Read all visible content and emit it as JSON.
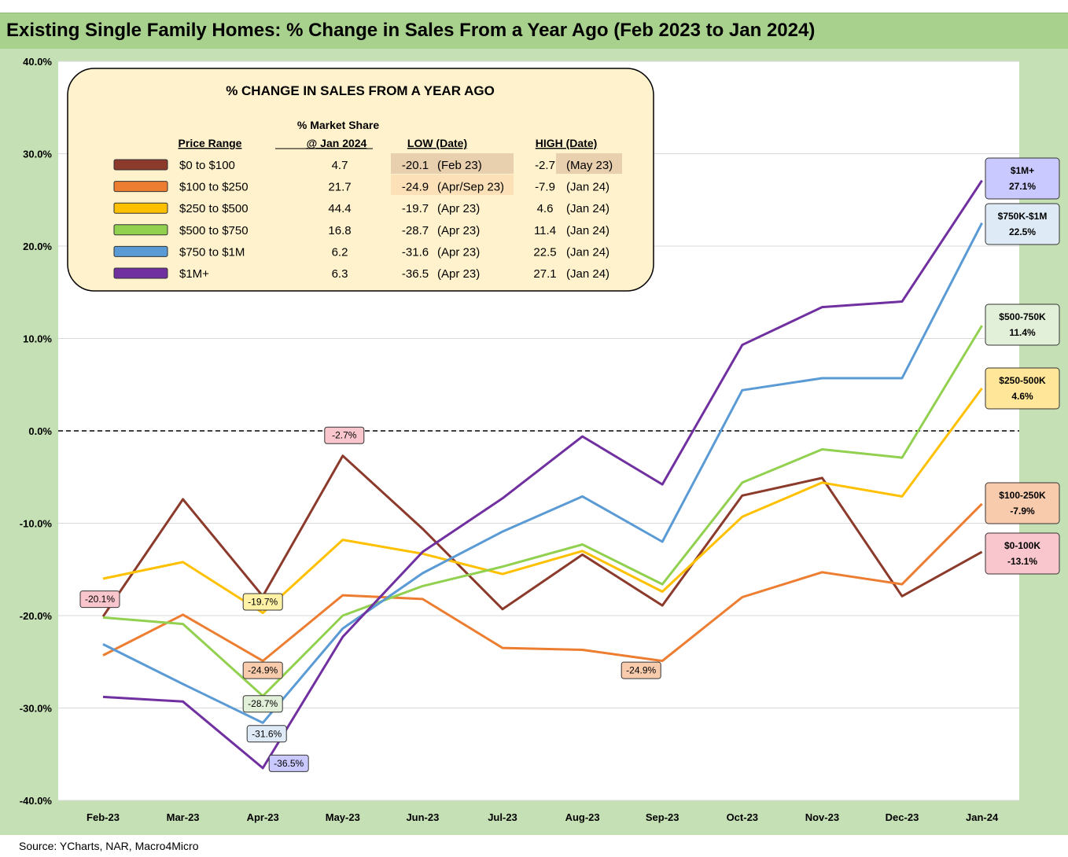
{
  "title": "Existing Single Family Homes: % Change in Sales From a Year Ago (Feb 2023 to Jan 2024)",
  "source": "Source: YCharts, NAR, Macro4Micro",
  "chart_data": {
    "type": "line",
    "x": [
      "Feb-23",
      "Mar-23",
      "Apr-23",
      "May-23",
      "Jun-23",
      "Jul-23",
      "Aug-23",
      "Sep-23",
      "Oct-23",
      "Nov-23",
      "Dec-23",
      "Jan-24"
    ],
    "ylim": [
      -40,
      40
    ],
    "yticks": [
      "40.0%",
      "30.0%",
      "20.0%",
      "10.0%",
      "0.0%",
      "-10.0%",
      "-20.0%",
      "-30.0%",
      "-40.0%"
    ],
    "reference_line": 0,
    "grid": true,
    "series": [
      {
        "name": "$0 to $100",
        "color": "#8b3a2b",
        "values": [
          -20.1,
          -7.4,
          -17.9,
          -2.7,
          -10.6,
          -19.3,
          -13.4,
          -18.9,
          -7.0,
          -5.1,
          -17.9,
          -13.1
        ]
      },
      {
        "name": "$100 to $250",
        "color": "#ed7d31",
        "values": [
          -24.3,
          -19.9,
          -24.9,
          -17.8,
          -18.2,
          -23.5,
          -23.7,
          -24.9,
          -18.0,
          -15.3,
          -16.6,
          -7.9
        ]
      },
      {
        "name": "$250 to $500",
        "color": "#ffc000",
        "values": [
          -16.0,
          -14.2,
          -19.7,
          -11.8,
          -13.3,
          -15.5,
          -13.0,
          -17.4,
          -9.3,
          -5.6,
          -7.1,
          4.6
        ]
      },
      {
        "name": "$500 to $750",
        "color": "#92d050",
        "values": [
          -20.2,
          -20.9,
          -28.7,
          -20.0,
          -16.8,
          -14.7,
          -12.3,
          -16.6,
          -5.6,
          -2.0,
          -2.9,
          11.4
        ]
      },
      {
        "name": "$750 to $1M",
        "color": "#5b9bd5",
        "values": [
          -23.1,
          -27.4,
          -31.6,
          -21.4,
          -15.4,
          -10.9,
          -7.1,
          -12.0,
          4.4,
          5.7,
          5.7,
          22.5
        ]
      },
      {
        "name": "$1M+",
        "color": "#7030a0",
        "values": [
          -28.8,
          -29.3,
          -36.5,
          -22.3,
          -13.1,
          -7.3,
          -0.6,
          -5.8,
          9.3,
          13.4,
          14.0,
          27.1
        ]
      }
    ],
    "point_labels": [
      {
        "text": "-20.1%",
        "x": "Feb-23",
        "y": -20.1,
        "fill": "#f8c6cc"
      },
      {
        "text": "-2.7%",
        "x": "May-23",
        "y": -2.7,
        "fill": "#f8c6cc"
      },
      {
        "text": "-19.7%",
        "x": "Apr-23",
        "y": -19.7,
        "fill": "#fff2a6"
      },
      {
        "text": "-24.9%",
        "x": "Apr-23",
        "y": -24.9,
        "fill": "#f8cbad"
      },
      {
        "text": "-28.7%",
        "x": "Apr-23",
        "y": -28.7,
        "fill": "#e2f0d9"
      },
      {
        "text": "-31.6%",
        "x": "Apr-23",
        "y": -31.6,
        "fill": "#deebf7"
      },
      {
        "text": "-36.5%",
        "x": "Apr-23",
        "y": -36.5,
        "fill": "#c9c9ff"
      },
      {
        "text": "-24.9%",
        "x": "Sep-23",
        "y": -24.9,
        "fill": "#f8cbad"
      }
    ],
    "end_labels": [
      {
        "line1": "$1M+",
        "line2": "27.1%",
        "fill": "#c9c9ff"
      },
      {
        "line1": "$750K-$1M",
        "line2": "22.5%",
        "fill": "#deebf7"
      },
      {
        "line1": "$500-750K",
        "line2": "11.4%",
        "fill": "#e2f0d9"
      },
      {
        "line1": "$250-500K",
        "line2": "4.6%",
        "fill": "#ffe699"
      },
      {
        "line1": "$100-250K",
        "line2": "-7.9%",
        "fill": "#f8cbad"
      },
      {
        "line1": "$0-100K",
        "line2": "-13.1%",
        "fill": "#f8c6cc"
      }
    ],
    "legend_table": {
      "title": "% CHANGE IN SALES FROM A YEAR AGO",
      "headers": {
        "range": "Price Range",
        "share1": "% Market Share",
        "share2": "@ Jan 2024",
        "low": "LOW  (Date)",
        "high": "HIGH  (Date)"
      },
      "rows": [
        {
          "range": "$0 to $100",
          "share": "4.7",
          "low": "-20.1",
          "low_date": "(Feb 23)",
          "high": "-2.7",
          "high_date": "(May 23)",
          "color": "#8b3a2b"
        },
        {
          "range": "$100 to $250",
          "share": "21.7",
          "low": "-24.9",
          "low_date": "(Apr/Sep 23)",
          "high": "-7.9",
          "high_date": "(Jan 24)",
          "color": "#ed7d31"
        },
        {
          "range": "$250 to $500",
          "share": "44.4",
          "low": "-19.7",
          "low_date": "(Apr 23)",
          "high": "4.6",
          "high_date": "(Jan 24)",
          "color": "#ffc000"
        },
        {
          "range": "$500 to $750",
          "share": "16.8",
          "low": "-28.7",
          "low_date": "(Apr 23)",
          "high": "11.4",
          "high_date": "(Jan 24)",
          "color": "#92d050"
        },
        {
          "range": "$750 to $1M",
          "share": "6.2",
          "low": "-31.6",
          "low_date": "(Apr 23)",
          "high": "22.5",
          "high_date": "(Jan 24)",
          "color": "#5b9bd5"
        },
        {
          "range": "$1M+",
          "share": "6.3",
          "low": "-36.5",
          "low_date": "(Apr 23)",
          "high": "27.1",
          "high_date": "(Jan 24)",
          "color": "#7030a0"
        }
      ]
    }
  }
}
